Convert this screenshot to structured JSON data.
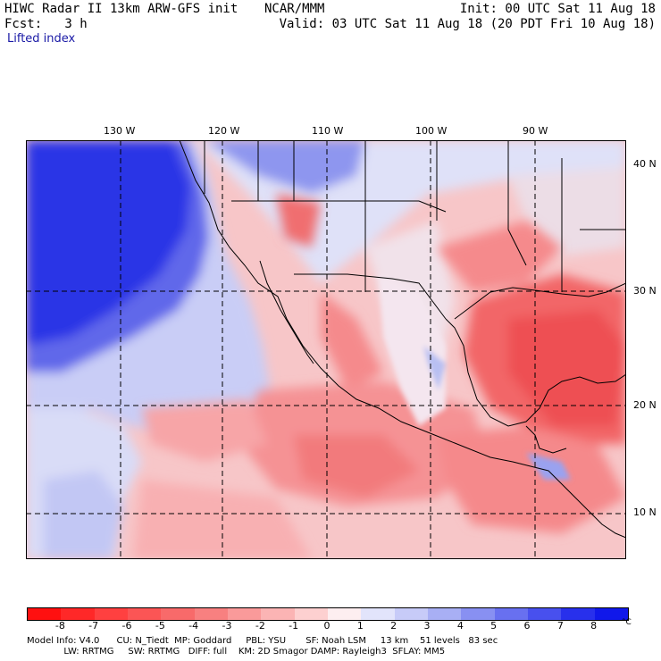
{
  "header": {
    "model_title": "HIWC Radar II 13km ARW-GFS init",
    "org": "NCAR/MMM",
    "init": "Init: 00 UTC Sat 11 Aug 18",
    "fcst": "Fcst:   3 h",
    "valid": "Valid: 03 UTC Sat 11 Aug 18 (20 PDT Fri 10 Aug 18)",
    "field": "Lifted index"
  },
  "map": {
    "lon_labels": [
      "130 W",
      "120 W",
      "110 W",
      "100 W",
      "90 W"
    ],
    "lat_labels": [
      "40 N",
      "30 N",
      "20 N",
      "10 N"
    ]
  },
  "colorbar": {
    "labels": [
      "-8",
      "-7",
      "-6",
      "-5",
      "-4",
      "-3",
      "-2",
      "-1",
      "0",
      "1",
      "2",
      "3",
      "4",
      "5",
      "6",
      "7",
      "8"
    ],
    "unit": "°C",
    "colors": [
      "#ff1010",
      "#ff2828",
      "#ff4040",
      "#fb5555",
      "#f86a6a",
      "#f88080",
      "#fa9a9a",
      "#fbb4b4",
      "#fdd0d0",
      "#fdeef0",
      "#e2e4fb",
      "#c7cbf8",
      "#a8aff4",
      "#8890f2",
      "#6870f0",
      "#4850ee",
      "#2830ec",
      "#1018ea"
    ]
  },
  "footer": {
    "line1": "Model Info: V4.0      CU: N_Tiedt  MP: Goddard     PBL: YSU       SF: Noah LSM     13 km    51 levels   83 sec",
    "line2": "             LW: RRTMG     SW: RRTMG   DIFF: full    KM: 2D Smagor DAMP: Rayleigh3  SFLAY: MM5"
  }
}
